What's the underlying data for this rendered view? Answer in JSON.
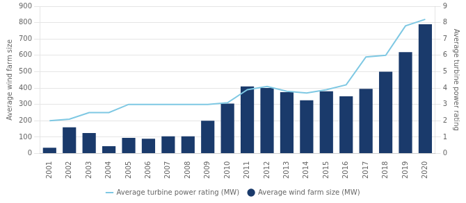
{
  "chart_data": {
    "type": "bar",
    "categories": [
      "2001",
      "2002",
      "2003",
      "2004",
      "2005",
      "2006",
      "2007",
      "2008",
      "2009",
      "2010",
      "2011",
      "2012",
      "2013",
      "2014",
      "2015",
      "2016",
      "2017",
      "2018",
      "2019",
      "2020"
    ],
    "series": [
      {
        "name": "Average wind farm size (MW)",
        "type": "bar",
        "color": "#1a3a6b",
        "values": [
          35,
          160,
          125,
          45,
          95,
          90,
          105,
          105,
          200,
          305,
          410,
          400,
          375,
          325,
          380,
          350,
          395,
          500,
          620,
          790
        ]
      },
      {
        "name": "Average turbine power rating (MW)",
        "type": "line",
        "axis": "y2",
        "color": "#7ec8e3",
        "values": [
          2.0,
          2.1,
          2.5,
          2.5,
          3.0,
          3.0,
          3.0,
          3.0,
          3.0,
          3.1,
          3.9,
          4.1,
          3.8,
          3.7,
          3.9,
          4.2,
          5.9,
          6.0,
          7.8,
          8.2
        ]
      }
    ],
    "ylabel": "Average wind farm size",
    "y2label": "Average turbine power rating",
    "ylim": [
      0,
      900
    ],
    "yticks": [
      0,
      100,
      200,
      300,
      400,
      500,
      600,
      700,
      800,
      900
    ],
    "y2lim": [
      0,
      9
    ],
    "y2ticks": [
      0,
      1,
      2,
      3,
      4,
      5,
      6,
      7,
      8,
      9
    ],
    "grid": true,
    "legend": "bottom"
  }
}
